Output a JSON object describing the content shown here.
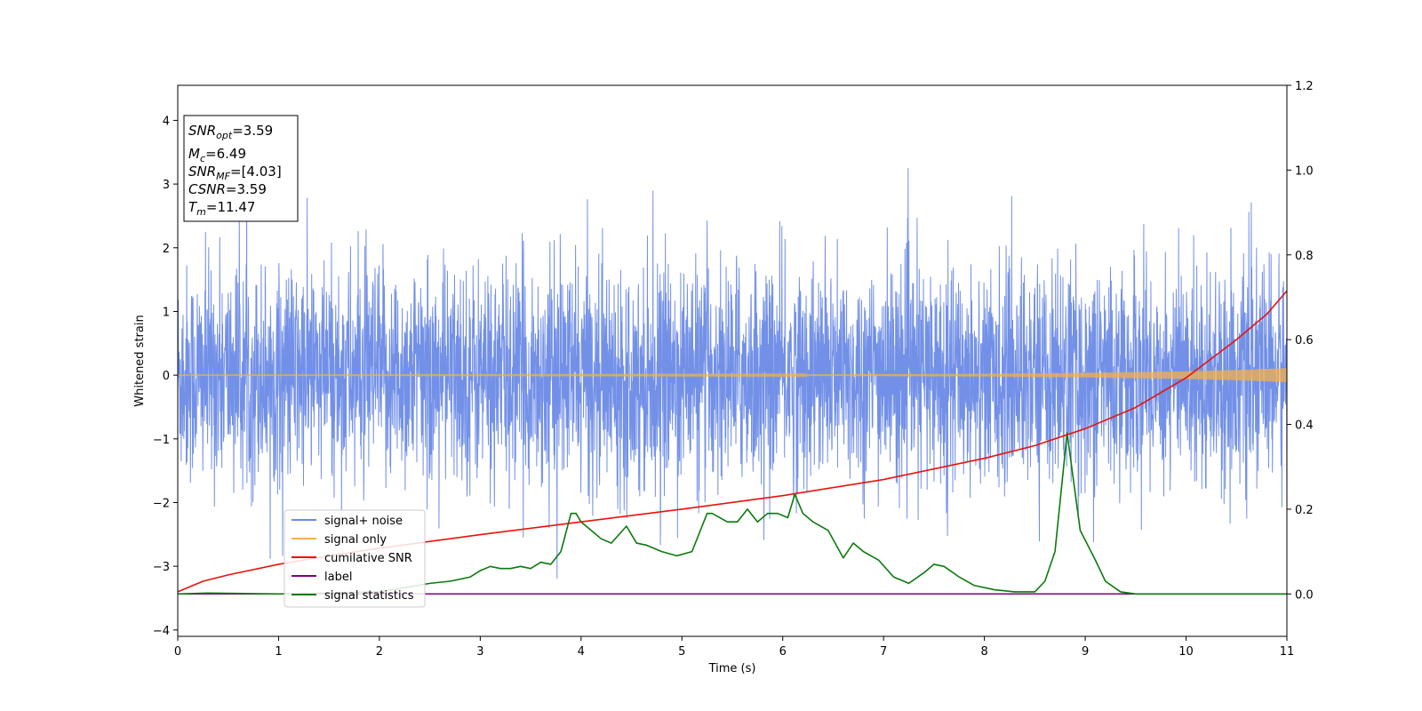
{
  "chart_data": {
    "type": "line",
    "xlabel": "Time (s)",
    "ylabel": "Whitened strain",
    "xlim": [
      0,
      11
    ],
    "ylim": [
      -4.1,
      4.55
    ],
    "y2lim": [
      -0.1,
      1.2
    ],
    "x_ticks": [
      0,
      1,
      2,
      3,
      4,
      5,
      6,
      7,
      8,
      9,
      10,
      11
    ],
    "y_ticks": [
      -4,
      -3,
      -2,
      -1,
      0,
      1,
      2,
      3,
      4
    ],
    "y2_ticks": [
      0.0,
      0.2,
      0.4,
      0.6,
      0.8,
      1.0,
      1.2
    ],
    "grid": false,
    "legend_position": "lower-left",
    "annotation": {
      "snr_opt": {
        "sym": "SNR",
        "sub": "opt",
        "val": "=3.59"
      },
      "mc": {
        "sym": "M",
        "sub": "c",
        "val": "=6.49"
      },
      "snr_mf": {
        "sym": "SNR",
        "sub": "MF",
        "val": "=[4.03]"
      },
      "csnr": {
        "sym": "CSNR",
        "sub": "",
        "val": "=3.59"
      },
      "tm": {
        "sym": "T",
        "sub": "m",
        "val": "=11.47"
      }
    },
    "series": [
      {
        "name": "signal+ noise",
        "color": "#6a8ae6",
        "axis": "left",
        "kind": "noise",
        "sigma": 0.85,
        "approx_range": [
          -3.7,
          4.15
        ]
      },
      {
        "name": "signal only",
        "color": "#f5b04a",
        "axis": "left",
        "kind": "chirp",
        "x": [
          0,
          2,
          4,
          6,
          8,
          9,
          10,
          10.5,
          11
        ],
        "amplitude": [
          0.004,
          0.005,
          0.007,
          0.01,
          0.02,
          0.035,
          0.06,
          0.08,
          0.11
        ]
      },
      {
        "name": "cumilative SNR",
        "color": "#e8120c",
        "axis": "right",
        "x": [
          0,
          0.25,
          0.5,
          1,
          1.5,
          2,
          3,
          4,
          5,
          6,
          7,
          8,
          8.5,
          9,
          9.5,
          10,
          10.5,
          10.8,
          11
        ],
        "values": [
          0.005,
          0.03,
          0.045,
          0.07,
          0.09,
          0.108,
          0.14,
          0.17,
          0.2,
          0.232,
          0.27,
          0.32,
          0.35,
          0.39,
          0.44,
          0.51,
          0.6,
          0.66,
          0.715
        ]
      },
      {
        "name": "label",
        "color": "#800080",
        "axis": "right",
        "x": [
          0,
          11
        ],
        "values": [
          0,
          0
        ]
      },
      {
        "name": "signal statistics",
        "color": "#0b7a0b",
        "axis": "right",
        "x": [
          0,
          0.3,
          1,
          2,
          2.5,
          2.7,
          2.9,
          3.0,
          3.1,
          3.2,
          3.3,
          3.4,
          3.5,
          3.6,
          3.7,
          3.8,
          3.9,
          3.95,
          4.0,
          4.1,
          4.2,
          4.3,
          4.45,
          4.55,
          4.65,
          4.8,
          4.95,
          5.1,
          5.25,
          5.3,
          5.45,
          5.55,
          5.65,
          5.75,
          5.85,
          5.95,
          6.05,
          6.12,
          6.2,
          6.3,
          6.45,
          6.6,
          6.7,
          6.8,
          6.95,
          7.1,
          7.25,
          7.4,
          7.5,
          7.6,
          7.75,
          7.9,
          8.1,
          8.3,
          8.5,
          8.6,
          8.7,
          8.82,
          8.95,
          9.1,
          9.2,
          9.35,
          9.5,
          10,
          11
        ],
        "values": [
          0.0,
          0.002,
          0.0,
          0.005,
          0.025,
          0.03,
          0.04,
          0.055,
          0.065,
          0.06,
          0.06,
          0.065,
          0.06,
          0.075,
          0.07,
          0.1,
          0.19,
          0.19,
          0.17,
          0.15,
          0.13,
          0.12,
          0.16,
          0.12,
          0.115,
          0.1,
          0.09,
          0.1,
          0.19,
          0.19,
          0.17,
          0.17,
          0.2,
          0.17,
          0.19,
          0.19,
          0.18,
          0.235,
          0.19,
          0.17,
          0.15,
          0.085,
          0.12,
          0.1,
          0.08,
          0.04,
          0.025,
          0.05,
          0.07,
          0.065,
          0.04,
          0.02,
          0.01,
          0.005,
          0.005,
          0.03,
          0.1,
          0.38,
          0.15,
          0.08,
          0.03,
          0.005,
          0.0,
          0.0,
          0.0
        ]
      }
    ]
  }
}
